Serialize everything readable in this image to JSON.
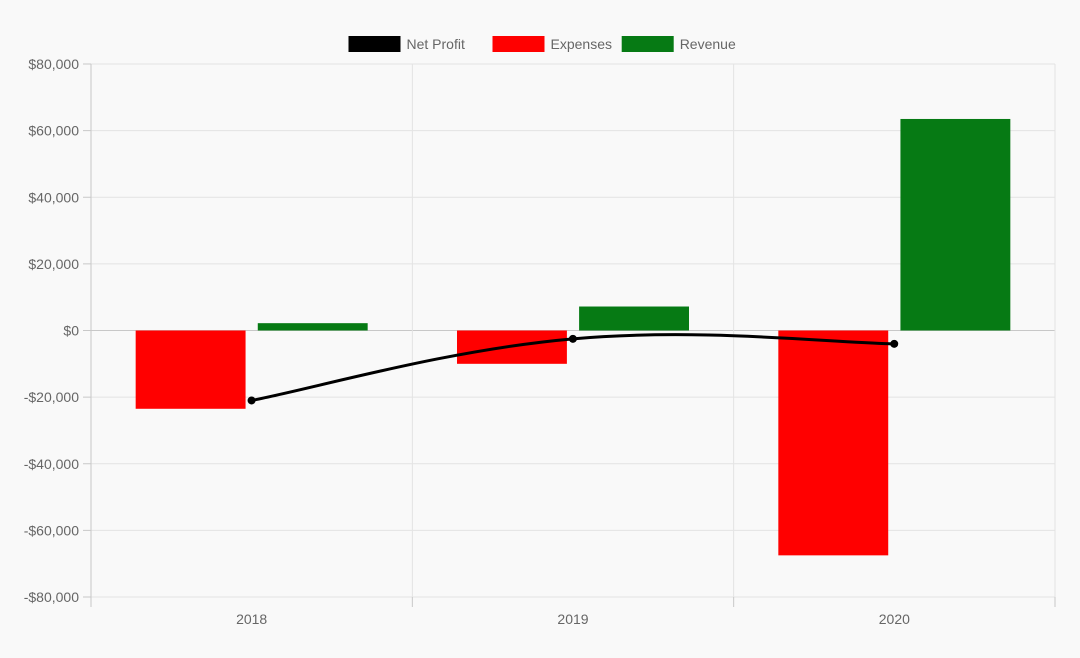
{
  "chart_data": {
    "type": "bar",
    "categories": [
      "2018",
      "2019",
      "2020"
    ],
    "ylim": [
      -80000,
      80000
    ],
    "yticks": [
      80000,
      60000,
      40000,
      20000,
      0,
      -20000,
      -40000,
      -60000,
      -80000
    ],
    "ytick_labels": [
      "$80,000",
      "$60,000",
      "$40,000",
      "$20,000",
      "$0",
      "-$20,000",
      "-$40,000",
      "-$60,000",
      "-$80,000"
    ],
    "grid": true,
    "legend_position": "top",
    "series": [
      {
        "name": "Net Profit",
        "type": "line",
        "color": "#000000",
        "values": [
          -21000,
          -2500,
          -4000
        ]
      },
      {
        "name": "Expenses",
        "type": "bar",
        "color": "#ff0000",
        "values": [
          -23500,
          -10000,
          -67500
        ]
      },
      {
        "name": "Revenue",
        "type": "bar",
        "color": "#067a14",
        "values": [
          2200,
          7200,
          63500
        ]
      }
    ]
  }
}
